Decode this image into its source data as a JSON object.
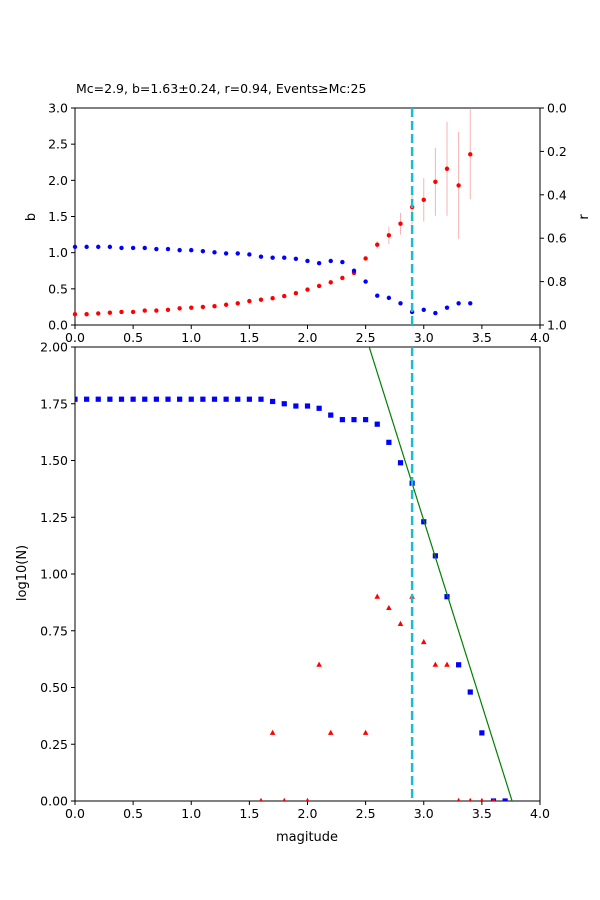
{
  "chart_data": [
    {
      "type": "scatter",
      "title": "Mc=2.9, b=1.63±0.24, r=0.94, Events≥Mc:25",
      "xlabel": "",
      "ylabel": "b",
      "ylabel_right": "r",
      "xlim": [
        0,
        4
      ],
      "ylim": [
        0,
        3
      ],
      "ylim_right": [
        1,
        0
      ],
      "xticks": [
        "0.0",
        "0.5",
        "1.0",
        "1.5",
        "2.0",
        "2.5",
        "3.0",
        "3.5",
        "4.0"
      ],
      "yticks": [
        "0.0",
        "0.5",
        "1.0",
        "1.5",
        "2.0",
        "2.5",
        "3.0"
      ],
      "yticks_right": [
        "0.0",
        "0.2",
        "0.4",
        "0.6",
        "0.8",
        "1.0"
      ],
      "mc_line": 2.9,
      "series": [
        {
          "axis": "left",
          "color": "#ff0000",
          "x": [
            0.0,
            0.1,
            0.2,
            0.3,
            0.4,
            0.5,
            0.6,
            0.7,
            0.8,
            0.9,
            1.0,
            1.1,
            1.2,
            1.3,
            1.4,
            1.5,
            1.6,
            1.7,
            1.8,
            1.9,
            2.0,
            2.1,
            2.2,
            2.3,
            2.4,
            2.5,
            2.6,
            2.7,
            2.8,
            2.9,
            3.0,
            3.1,
            3.2,
            3.3,
            3.4
          ],
          "y": [
            0.15,
            0.15,
            0.16,
            0.17,
            0.18,
            0.18,
            0.2,
            0.2,
            0.21,
            0.23,
            0.24,
            0.25,
            0.26,
            0.28,
            0.3,
            0.33,
            0.35,
            0.37,
            0.4,
            0.44,
            0.49,
            0.54,
            0.59,
            0.65,
            0.72,
            0.92,
            1.11,
            1.24,
            1.4,
            1.63,
            1.73,
            1.98,
            2.16,
            1.93,
            2.36
          ],
          "err": [
            0,
            0,
            0,
            0,
            0,
            0,
            0,
            0,
            0,
            0,
            0,
            0,
            0,
            0,
            0,
            0,
            0,
            0,
            0,
            0,
            0,
            0,
            0,
            0,
            0,
            0,
            0.05,
            0.12,
            0.15,
            0.24,
            0.3,
            0.47,
            0.65,
            0.74,
            0.62
          ]
        },
        {
          "axis": "right",
          "color": "#0000ff",
          "x": [
            0.0,
            0.1,
            0.2,
            0.3,
            0.4,
            0.5,
            0.6,
            0.7,
            0.8,
            0.9,
            1.0,
            1.1,
            1.2,
            1.3,
            1.4,
            1.5,
            1.6,
            1.7,
            1.8,
            1.9,
            2.0,
            2.1,
            2.2,
            2.3,
            2.4,
            2.5,
            2.6,
            2.7,
            2.8,
            2.9,
            3.0,
            3.1,
            3.2,
            3.3,
            3.4
          ],
          "y": [
            0.64,
            0.64,
            0.64,
            0.64,
            0.645,
            0.645,
            0.645,
            0.65,
            0.65,
            0.655,
            0.655,
            0.66,
            0.665,
            0.67,
            0.67,
            0.675,
            0.685,
            0.69,
            0.69,
            0.695,
            0.705,
            0.715,
            0.705,
            0.71,
            0.75,
            0.8,
            0.865,
            0.875,
            0.9,
            0.94,
            0.93,
            0.945,
            0.92,
            0.9,
            0.9
          ]
        }
      ]
    },
    {
      "type": "scatter",
      "title": "",
      "xlabel": "magitude",
      "ylabel": "log10(N)",
      "xlim": [
        0,
        4
      ],
      "ylim": [
        0,
        2
      ],
      "xticks": [
        "0.0",
        "0.5",
        "1.0",
        "1.5",
        "2.0",
        "2.5",
        "3.0",
        "3.5",
        "4.0"
      ],
      "yticks": [
        "0.00",
        "0.25",
        "0.50",
        "0.75",
        "1.00",
        "1.25",
        "1.50",
        "1.75",
        "2.00"
      ],
      "mc_line": 2.9,
      "fit_line": {
        "x": [
          2.5,
          3.76
        ],
        "y": [
          2.05,
          0.0
        ],
        "color": "#008000"
      },
      "series": [
        {
          "marker": "square",
          "color": "#0000ff",
          "x": [
            0.0,
            0.1,
            0.2,
            0.3,
            0.4,
            0.5,
            0.6,
            0.7,
            0.8,
            0.9,
            1.0,
            1.1,
            1.2,
            1.3,
            1.4,
            1.5,
            1.6,
            1.7,
            1.8,
            1.9,
            2.0,
            2.1,
            2.2,
            2.3,
            2.4,
            2.5,
            2.6,
            2.7,
            2.8,
            2.9,
            3.0,
            3.1,
            3.2,
            3.3,
            3.4,
            3.5,
            3.6,
            3.7
          ],
          "y": [
            1.77,
            1.77,
            1.77,
            1.77,
            1.77,
            1.77,
            1.77,
            1.77,
            1.77,
            1.77,
            1.77,
            1.77,
            1.77,
            1.77,
            1.77,
            1.77,
            1.77,
            1.76,
            1.75,
            1.74,
            1.74,
            1.73,
            1.7,
            1.68,
            1.68,
            1.68,
            1.66,
            1.58,
            1.49,
            1.4,
            1.23,
            1.08,
            0.9,
            0.6,
            0.48,
            0.3,
            0.0,
            0.0
          ]
        },
        {
          "marker": "triangle",
          "color": "#ff0000",
          "x": [
            1.6,
            1.7,
            1.8,
            2.0,
            2.1,
            2.2,
            2.5,
            2.6,
            2.7,
            2.8,
            2.9,
            3.0,
            3.1,
            3.2,
            3.3,
            3.4,
            3.5,
            3.6
          ],
          "y": [
            0.0,
            0.3,
            0.0,
            0.0,
            0.6,
            0.3,
            0.3,
            0.9,
            0.85,
            0.78,
            0.9,
            0.7,
            0.6,
            0.6,
            0.0,
            0.0,
            0.0,
            0.0
          ]
        }
      ]
    }
  ]
}
